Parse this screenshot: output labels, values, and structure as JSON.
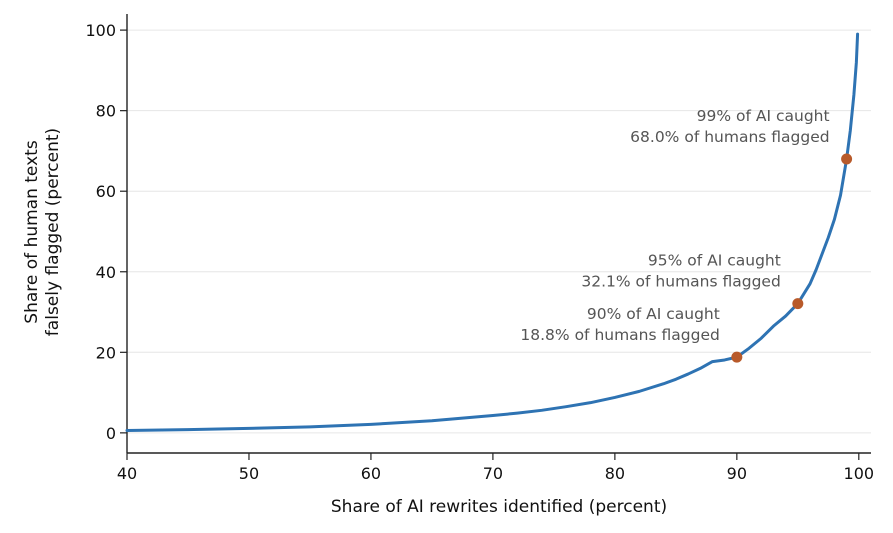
{
  "chart_data": {
    "type": "line",
    "title": "",
    "xlabel": "Share of AI rewrites identified (percent)",
    "ylabel_line1": "Share of human texts",
    "ylabel_line2": "falsely flagged (percent)",
    "xlim": [
      40,
      101
    ],
    "ylim": [
      -5,
      104
    ],
    "x_ticks": [
      40,
      50,
      60,
      70,
      80,
      90,
      100
    ],
    "y_ticks": [
      0,
      20,
      40,
      60,
      80,
      100
    ],
    "grid": "horizontal",
    "line_color": "#2e73b3",
    "marker_color": "#b85a2a",
    "series": [
      {
        "x": [
          40,
          45,
          50,
          55,
          60,
          65,
          70,
          72,
          74,
          76,
          78,
          80,
          82,
          84,
          85,
          86,
          87,
          88,
          89,
          90,
          91,
          92,
          93,
          94,
          95,
          96,
          96.5,
          97,
          97.5,
          98,
          98.5,
          99,
          99.3,
          99.6,
          99.8,
          99.9
        ],
        "values": [
          0.6,
          0.8,
          1.1,
          1.5,
          2.1,
          3.0,
          4.3,
          4.9,
          5.6,
          6.5,
          7.5,
          8.8,
          10.3,
          12.2,
          13.3,
          14.6,
          16.0,
          17.7,
          18.1,
          18.8,
          21.0,
          23.5,
          26.5,
          29.0,
          32.1,
          37.0,
          40.5,
          44.5,
          48.5,
          53.0,
          59.0,
          68.0,
          75.0,
          84.0,
          92.0,
          99.0
        ]
      }
    ],
    "highlights": [
      {
        "x": 90,
        "y": 18.8,
        "line1": "90% of AI caught",
        "line2": "18.8% of humans flagged"
      },
      {
        "x": 95,
        "y": 32.1,
        "line1": "95% of AI caught",
        "line2": "32.1% of humans flagged"
      },
      {
        "x": 99,
        "y": 68.0,
        "line1": "99% of AI caught",
        "line2": "68.0% of humans flagged"
      }
    ]
  }
}
